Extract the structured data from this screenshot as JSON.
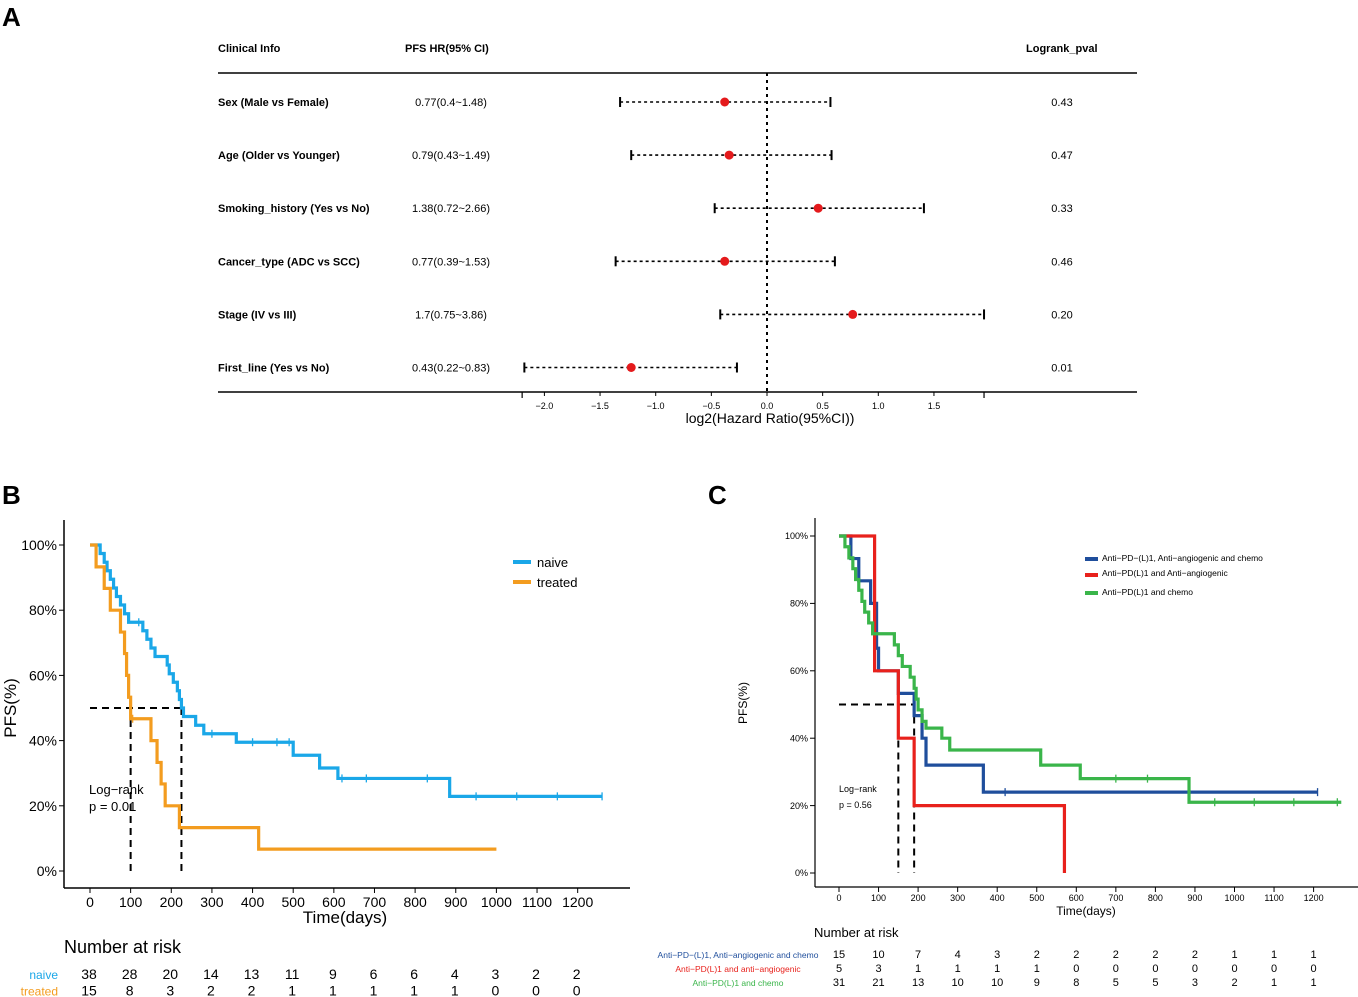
{
  "panel_labels": {
    "a": "A",
    "b": "B",
    "c": "C"
  },
  "chart_data": [
    {
      "type": "forest",
      "panel": "A",
      "headers": {
        "clinical": "Clinical Info",
        "hr": "PFS HR(95% CI)",
        "pval": "Logrank_pval"
      },
      "xlabel": "log2(Hazard Ratio(95%CI))",
      "xlim": [
        -2.2,
        1.95
      ],
      "ticks": [
        -2.0,
        -1.5,
        -1.0,
        -0.5,
        0.0,
        0.5,
        1.0,
        1.5
      ],
      "tick_labels": [
        "−2.0",
        "−1.5",
        "−1.0",
        "−0.5",
        "0.0",
        "0.5",
        "1.0",
        "1.5"
      ],
      "point_color": "#e41a1c",
      "rows": [
        {
          "label": "Sex (Male vs Female)",
          "hr_text": "0.77(0.4~1.48)",
          "pval": "0.43",
          "est": -0.38,
          "lo": -1.32,
          "hi": 0.57
        },
        {
          "label": "Age (Older vs Younger)",
          "hr_text": "0.79(0.43~1.49)",
          "pval": "0.47",
          "est": -0.34,
          "lo": -1.22,
          "hi": 0.58
        },
        {
          "label": "Smoking_history (Yes vs No)",
          "hr_text": "1.38(0.72~2.66)",
          "pval": "0.33",
          "est": 0.46,
          "lo": -0.47,
          "hi": 1.41
        },
        {
          "label": "Cancer_type (ADC vs SCC)",
          "hr_text": "0.77(0.39~1.53)",
          "pval": "0.46",
          "est": -0.38,
          "lo": -1.36,
          "hi": 0.61
        },
        {
          "label": "Stage (IV vs III)",
          "hr_text": "1.7(0.75~3.86)",
          "pval": "0.20",
          "est": 0.77,
          "lo": -0.42,
          "hi": 1.95
        },
        {
          "label": "First_line (Yes vs No)",
          "hr_text": "0.43(0.22~0.83)",
          "pval": "0.01",
          "est": -1.22,
          "lo": -2.18,
          "hi": -0.27
        }
      ]
    },
    {
      "type": "line",
      "subtype": "kaplan-meier",
      "panel": "B",
      "xlabel": "Time(days)",
      "ylabel": "PFS(%)",
      "xlim": [
        -60,
        1270
      ],
      "ylim": [
        -0.05,
        1.05
      ],
      "x_ticks": [
        0,
        100,
        200,
        300,
        400,
        500,
        600,
        700,
        800,
        900,
        1000,
        1100,
        1200
      ],
      "y_ticks": [
        0,
        0.2,
        0.4,
        0.6,
        0.8,
        1.0
      ],
      "y_tick_labels": [
        "0%",
        "20%",
        "40%",
        "60%",
        "80%",
        "100%"
      ],
      "annotation": [
        "Log−rank",
        "p = 0.01"
      ],
      "medians": [
        100,
        225
      ],
      "series": [
        {
          "name": "naive",
          "color": "#1aa7e8",
          "steps": [
            [
              0,
              1.0
            ],
            [
              25,
              0.974
            ],
            [
              35,
              0.947
            ],
            [
              42,
              0.921
            ],
            [
              50,
              0.895
            ],
            [
              58,
              0.868
            ],
            [
              65,
              0.842
            ],
            [
              75,
              0.816
            ],
            [
              85,
              0.789
            ],
            [
              95,
              0.763
            ],
            [
              130,
              0.737
            ],
            [
              140,
              0.711
            ],
            [
              150,
              0.684
            ],
            [
              160,
              0.658
            ],
            [
              190,
              0.632
            ],
            [
              195,
              0.605
            ],
            [
              205,
              0.579
            ],
            [
              215,
              0.553
            ],
            [
              220,
              0.526
            ],
            [
              225,
              0.5
            ],
            [
              230,
              0.474
            ],
            [
              260,
              0.447
            ],
            [
              280,
              0.421
            ],
            [
              360,
              0.395
            ],
            [
              500,
              0.355
            ],
            [
              565,
              0.316
            ],
            [
              610,
              0.284
            ],
            [
              885,
              0.229
            ],
            [
              1260,
              0.229
            ]
          ],
          "censor": [
            120,
            300,
            400,
            460,
            490,
            620,
            680,
            830,
            950,
            1050,
            1150,
            1260
          ]
        },
        {
          "name": "treated",
          "color": "#f39c1f",
          "steps": [
            [
              0,
              1.0
            ],
            [
              15,
              0.933
            ],
            [
              35,
              0.867
            ],
            [
              50,
              0.8
            ],
            [
              75,
              0.733
            ],
            [
              85,
              0.667
            ],
            [
              90,
              0.6
            ],
            [
              95,
              0.533
            ],
            [
              100,
              0.467
            ],
            [
              150,
              0.4
            ],
            [
              165,
              0.333
            ],
            [
              175,
              0.267
            ],
            [
              185,
              0.2
            ],
            [
              220,
              0.133
            ],
            [
              415,
              0.067
            ],
            [
              1000,
              0.067
            ]
          ],
          "censor": [
            105
          ]
        }
      ],
      "risk_table": {
        "title": "Number at risk",
        "times": [
          0,
          100,
          200,
          300,
          400,
          500,
          600,
          700,
          800,
          900,
          1000,
          1100,
          1200
        ],
        "rows": [
          {
            "label": "naive",
            "color": "#1aa7e8",
            "values": [
              "38",
              "28",
              "20",
              "14",
              "13",
              "11",
              "9",
              "6",
              "6",
              "4",
              "3",
              "2",
              "2"
            ]
          },
          {
            "label": "treated",
            "color": "#f39c1f",
            "values": [
              "15",
              "8",
              "3",
              "2",
              "2",
              "1",
              "1",
              "1",
              "1",
              "1",
              "0",
              "0",
              "0"
            ]
          }
        ]
      }
    },
    {
      "type": "line",
      "subtype": "kaplan-meier",
      "panel": "C",
      "xlabel": "Time(days)",
      "ylabel": "PFS(%)",
      "xlim": [
        -60,
        1270
      ],
      "ylim": [
        -0.05,
        1.05
      ],
      "x_ticks": [
        0,
        100,
        200,
        300,
        400,
        500,
        600,
        700,
        800,
        900,
        1000,
        1100,
        1200
      ],
      "y_ticks": [
        0,
        0.2,
        0.4,
        0.6,
        0.8,
        1.0
      ],
      "y_tick_labels": [
        "0%",
        "20%",
        "40%",
        "60%",
        "80%",
        "100%"
      ],
      "annotation": [
        "Log−rank",
        "p = 0.56"
      ],
      "medians": [
        150,
        190
      ],
      "series": [
        {
          "name": "Anti−PD−(L)1, Anti−angiogenic and chemo",
          "color": "#1f4e9c",
          "steps": [
            [
              0,
              1.0
            ],
            [
              30,
              0.933
            ],
            [
              50,
              0.867
            ],
            [
              80,
              0.8
            ],
            [
              95,
              0.667
            ],
            [
              100,
              0.6
            ],
            [
              150,
              0.533
            ],
            [
              190,
              0.467
            ],
            [
              210,
              0.4
            ],
            [
              220,
              0.32
            ],
            [
              365,
              0.24
            ],
            [
              1210,
              0.24
            ]
          ],
          "censor": [
            420,
            1210
          ]
        },
        {
          "name": "Anti−PD(L)1 and Anti−angiogenic",
          "color": "#e8211c",
          "steps": [
            [
              0,
              1.0
            ],
            [
              90,
              0.6
            ],
            [
              150,
              0.4
            ],
            [
              190,
              0.2
            ],
            [
              570,
              0.0
            ]
          ],
          "censor": []
        },
        {
          "name": "Anti−PD(L)1 and chemo",
          "color": "#3ab54a",
          "steps": [
            [
              0,
              1.0
            ],
            [
              15,
              0.968
            ],
            [
              25,
              0.935
            ],
            [
              35,
              0.903
            ],
            [
              42,
              0.871
            ],
            [
              50,
              0.839
            ],
            [
              58,
              0.806
            ],
            [
              65,
              0.774
            ],
            [
              75,
              0.742
            ],
            [
              85,
              0.71
            ],
            [
              140,
              0.677
            ],
            [
              150,
              0.645
            ],
            [
              160,
              0.613
            ],
            [
              180,
              0.581
            ],
            [
              190,
              0.548
            ],
            [
              195,
              0.516
            ],
            [
              200,
              0.484
            ],
            [
              210,
              0.45
            ],
            [
              220,
              0.43
            ],
            [
              260,
              0.4
            ],
            [
              280,
              0.365
            ],
            [
              510,
              0.32
            ],
            [
              610,
              0.28
            ],
            [
              885,
              0.21
            ],
            [
              1270,
              0.21
            ]
          ],
          "censor": [
            700,
            780,
            950,
            1050,
            1150,
            1260
          ]
        }
      ],
      "risk_table": {
        "title": "Number at risk",
        "times": [
          0,
          100,
          200,
          300,
          400,
          500,
          600,
          700,
          800,
          900,
          1000,
          1100,
          1200
        ],
        "rows": [
          {
            "label": "Anti−PD−(L)1, Anti−angiogenic and chemo",
            "color": "#1f4e9c",
            "values": [
              "15",
              "10",
              "7",
              "4",
              "3",
              "2",
              "2",
              "2",
              "2",
              "2",
              "1",
              "1",
              "1"
            ]
          },
          {
            "label": "Anti−PD(L)1 and anti−angiogenic",
            "color": "#e8211c",
            "values": [
              "5",
              "3",
              "1",
              "1",
              "1",
              "1",
              "0",
              "0",
              "0",
              "0",
              "0",
              "0",
              "0"
            ]
          },
          {
            "label": "Anti−PD(L)1 and chemo",
            "color": "#3ab54a",
            "values": [
              "31",
              "21",
              "13",
              "10",
              "10",
              "9",
              "8",
              "5",
              "5",
              "3",
              "2",
              "1",
              "1"
            ]
          }
        ]
      }
    }
  ]
}
